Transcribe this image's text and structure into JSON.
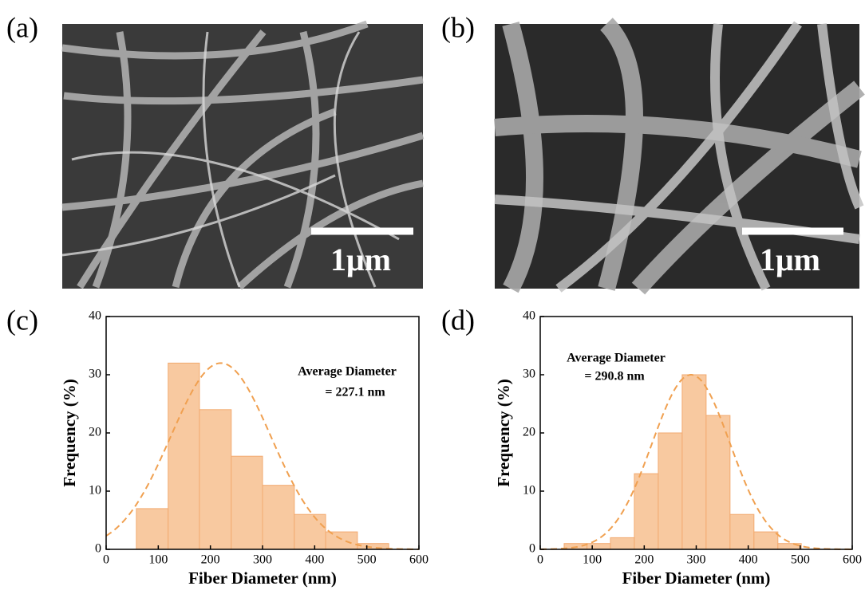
{
  "panels": [
    {
      "label": "(a)",
      "scale_bar": "1μm"
    },
    {
      "label": "(b)",
      "scale_bar": "1μm"
    },
    {
      "label": "(c)"
    },
    {
      "label": "(d)"
    }
  ],
  "chart_data": [
    {
      "type": "histogram",
      "xlabel": "Fiber Diameter (nm)",
      "ylabel": "Frequency (%)",
      "bins": [
        58,
        119,
        179,
        240,
        300,
        361,
        421,
        482,
        542
      ],
      "values": [
        7,
        32,
        24,
        16,
        11,
        6,
        3,
        1
      ],
      "color": "#f8c9a0",
      "edge_color": "#f2aa70",
      "xlim": [
        0,
        600
      ],
      "ylim": [
        0,
        40
      ],
      "xticks": [
        0,
        100,
        200,
        300,
        400,
        500,
        600
      ],
      "yticks": [
        0,
        10,
        20,
        30,
        40
      ],
      "annotation": [
        "Average Diameter",
        "= 227.1 nm"
      ],
      "fit": {
        "mean": 220,
        "sd": 96,
        "peak": 32,
        "color": "#f0a050"
      }
    },
    {
      "type": "histogram",
      "xlabel": "Fiber Diameter (nm)",
      "ylabel": "Frequency (%)",
      "bins": [
        46,
        90,
        135,
        181,
        227,
        273,
        319,
        365,
        411,
        457,
        502
      ],
      "values": [
        1,
        1,
        2,
        13,
        20,
        30,
        23,
        6,
        3,
        1
      ],
      "color": "#f8c9a0",
      "edge_color": "#f2aa70",
      "xlim": [
        0,
        600
      ],
      "ylim": [
        0,
        40
      ],
      "xticks": [
        0,
        100,
        200,
        300,
        400,
        500,
        600
      ],
      "yticks": [
        0,
        10,
        20,
        30,
        40
      ],
      "annotation": [
        "Average Diameter",
        "= 290.8 nm"
      ],
      "fit": {
        "mean": 290,
        "sd": 75,
        "peak": 30,
        "color": "#f0a050"
      }
    }
  ]
}
